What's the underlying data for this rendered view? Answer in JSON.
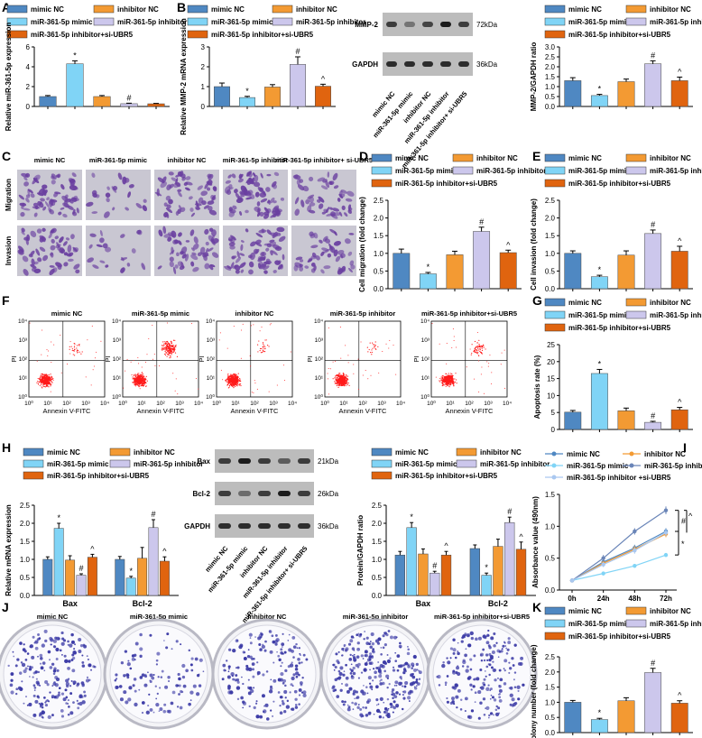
{
  "colors": {
    "mimic_nc": "#4f88c2",
    "mimic": "#80d4f6",
    "inhibitor_nc": "#f39a33",
    "inhibitor": "#ccc7ec",
    "inhibitor_siUBR5": "#e0640f",
    "stain_bg": "#c9c7d2",
    "stain_cell": "#6a3fa0",
    "blot_bg": "#bcbcbc",
    "blot_band": "#1c1c1c",
    "flow_dot": "#ff1a1a",
    "colony": "#3b3aa6"
  },
  "legend": {
    "mimic_nc": "mimic NC",
    "mimic": "miR-361-5p mimic",
    "inhibitor_nc": "inhibitor NC",
    "inhibitor": "miR-361-5p inhibitor",
    "inhibitor_siUBR5": "miR-361-5p inhibitor+si-UBR5"
  },
  "panel_labels": {
    "A": "A",
    "B": "B",
    "C": "C",
    "D": "D",
    "E": "E",
    "F": "F",
    "G": "G",
    "H": "H",
    "I": "I",
    "J": "J",
    "K": "K"
  },
  "images": {
    "C": {
      "groups": [
        "mimic NC",
        "miR-361-5p mimic",
        "inhibitor NC",
        "miR-361-5p inhibitor",
        "miR-361-5p inhibitor+ si-UBR5"
      ],
      "rows": [
        "Migration",
        "Invasion"
      ],
      "densities": [
        [
          70,
          22,
          60,
          75,
          50
        ],
        [
          60,
          20,
          55,
          70,
          48
        ]
      ]
    },
    "F": {
      "groups": [
        "mimic NC",
        "miR-361-5p mimic",
        "inhibitor NC",
        "miR-361-5p inhibitor",
        "miR-361-5p inhibitor+si-UBR5"
      ],
      "xlabel": "Annexin V-FITC",
      "ylabel": "PI",
      "ticks": [
        "10⁰",
        "10¹",
        "10²",
        "10³",
        "10⁴"
      ],
      "ur_density": [
        0.05,
        0.35,
        0.05,
        0.04,
        0.12
      ]
    },
    "J": {
      "groups": [
        "mimic NC",
        "miR-361-5p mimic",
        "inhibitor NC",
        "miR-361-5p inhibitor",
        "miR-361-5p inhibitor+si-UBR5"
      ],
      "colony_counts": [
        210,
        110,
        190,
        290,
        200
      ]
    },
    "blot_B": {
      "bands": [
        {
          "name": "MMP-2",
          "kda": "72kDa",
          "intensity": [
            0.8,
            0.45,
            0.75,
            1.0,
            0.8
          ]
        },
        {
          "name": "GAPDH",
          "kda": "36kDa",
          "intensity": [
            0.9,
            0.9,
            0.9,
            0.9,
            0.9
          ]
        }
      ],
      "lanes": [
        "mimic NC",
        "miR-361-5p mimic",
        "inhibitor NC",
        "miR-361-5p inhibitor",
        "miR-361-5p inhibitor+ si-UBR5"
      ]
    },
    "blot_H": {
      "bands": [
        {
          "name": "Bax",
          "kda": "21kDa",
          "intensity": [
            0.8,
            1.0,
            0.8,
            0.6,
            0.8
          ]
        },
        {
          "name": "Bcl-2",
          "kda": "26kDa",
          "intensity": [
            0.8,
            0.5,
            0.8,
            1.0,
            0.8
          ]
        },
        {
          "name": "GAPDH",
          "kda": "36kDa",
          "intensity": [
            0.9,
            0.9,
            0.9,
            0.9,
            0.9
          ]
        }
      ],
      "lanes": [
        "mimic NC",
        "miR-361-5p mimic",
        "inhibitor NC",
        "miR-361-5p inhibitor",
        "miR-361-5p inhibitor+ si-UBR5"
      ]
    }
  },
  "chart_data": [
    {
      "id": "A",
      "type": "bar",
      "categories": [
        "mimic NC",
        "miR-361-5p mimic",
        "inhibitor NC",
        "miR-361-5p inhibitor",
        "miR-361-5p inhibitor+si-UBR5"
      ],
      "values": [
        1.0,
        4.3,
        1.0,
        0.28,
        0.27
      ],
      "errors": [
        0.1,
        0.3,
        0.1,
        0.05,
        0.04
      ],
      "marks": [
        "",
        "*",
        "",
        "#",
        ""
      ],
      "ylabel": "Relative miR-361-5p expression",
      "ylim": [
        0,
        6
      ],
      "yticks": [
        0,
        2,
        4,
        6
      ]
    },
    {
      "id": "B1",
      "type": "bar",
      "categories": [
        "mimic NC",
        "miR-361-5p mimic",
        "inhibitor NC",
        "miR-361-5p inhibitor",
        "miR-361-5p inhibitor+si-UBR5"
      ],
      "values": [
        1.0,
        0.45,
        0.98,
        2.12,
        1.02
      ],
      "errors": [
        0.18,
        0.06,
        0.12,
        0.38,
        0.1
      ],
      "marks": [
        "",
        "*",
        "",
        "#",
        "^"
      ],
      "ylabel": "Relative MMP-2 mRNA expression",
      "ylim": [
        0,
        3
      ],
      "yticks": [
        0,
        1,
        2,
        3
      ]
    },
    {
      "id": "B2",
      "type": "bar",
      "categories": [
        "mimic NC",
        "miR-361-5p mimic",
        "inhibitor NC",
        "miR-361-5p inhibitor",
        "miR-361-5p inhibitor+si-UBR5"
      ],
      "values": [
        1.3,
        0.55,
        1.25,
        2.15,
        1.3
      ],
      "errors": [
        0.15,
        0.06,
        0.13,
        0.15,
        0.18
      ],
      "marks": [
        "",
        "*",
        "",
        "#",
        "^"
      ],
      "ylabel": "MMP-2/GAPDH ratio",
      "ylim": [
        0,
        3
      ],
      "yticks": [
        0.0,
        0.5,
        1.0,
        1.5,
        2.0,
        2.5,
        3.0
      ]
    },
    {
      "id": "D",
      "type": "bar",
      "categories": [
        "mimic NC",
        "miR-361-5p mimic",
        "inhibitor NC",
        "miR-361-5p inhibitor",
        "miR-361-5p inhibitor+si-UBR5"
      ],
      "values": [
        1.0,
        0.42,
        0.96,
        1.62,
        1.02
      ],
      "errors": [
        0.12,
        0.04,
        0.1,
        0.12,
        0.07
      ],
      "marks": [
        "",
        "*",
        "",
        "#",
        "^"
      ],
      "ylabel": "Cell migration (fold change)",
      "ylim": [
        0,
        2.5
      ],
      "yticks": [
        0.0,
        0.5,
        1.0,
        1.5,
        2.0,
        2.5
      ]
    },
    {
      "id": "E",
      "type": "bar",
      "categories": [
        "mimic NC",
        "miR-361-5p mimic",
        "inhibitor NC",
        "miR-361-5p inhibitor",
        "miR-361-5p inhibitor+si-UBR5"
      ],
      "values": [
        1.0,
        0.34,
        0.95,
        1.56,
        1.06
      ],
      "errors": [
        0.07,
        0.04,
        0.12,
        0.1,
        0.14
      ],
      "marks": [
        "",
        "*",
        "",
        "#",
        "^"
      ],
      "ylabel": "Cell invasion (fold change)",
      "ylim": [
        0,
        2.5
      ],
      "yticks": [
        0.0,
        0.5,
        1.0,
        1.5,
        2.0,
        2.5
      ]
    },
    {
      "id": "G",
      "type": "bar",
      "categories": [
        "mimic NC",
        "miR-361-5p mimic",
        "inhibitor NC",
        "miR-361-5p inhibitor",
        "miR-361-5p inhibitor+si-UBR5"
      ],
      "values": [
        5.1,
        16.5,
        5.5,
        2.1,
        5.8
      ],
      "errors": [
        0.5,
        1.2,
        0.8,
        0.3,
        0.7
      ],
      "marks": [
        "",
        "*",
        "",
        "#",
        "^"
      ],
      "ylabel": "Apoptosis rate (%)",
      "ylim": [
        0,
        25
      ],
      "yticks": [
        0,
        5,
        10,
        15,
        20,
        25
      ]
    },
    {
      "id": "H1",
      "type": "bar",
      "groups": [
        "Bax",
        "Bcl-2"
      ],
      "series": [
        {
          "name": "mimic NC",
          "values": [
            1.0,
            1.0
          ],
          "errors": [
            0.07,
            0.08
          ]
        },
        {
          "name": "miR-361-5p mimic",
          "values": [
            1.86,
            0.48
          ],
          "errors": [
            0.14,
            0.05
          ]
        },
        {
          "name": "inhibitor NC",
          "values": [
            0.98,
            1.03
          ],
          "errors": [
            0.12,
            0.3
          ]
        },
        {
          "name": "miR-361-5p inhibitor",
          "values": [
            0.56,
            1.88
          ],
          "errors": [
            0.04,
            0.22
          ]
        },
        {
          "name": "miR-361-5p inhibitor+si-UBR5",
          "values": [
            1.06,
            0.95
          ],
          "errors": [
            0.08,
            0.12
          ]
        }
      ],
      "marks": [
        [
          "",
          "*",
          "",
          "#",
          "^"
        ],
        [
          "",
          "*",
          "",
          "#",
          "^"
        ]
      ],
      "ylabel": "Relative mRNA expression",
      "ylim": [
        0,
        2.5
      ],
      "yticks": [
        0.0,
        0.5,
        1.0,
        1.5,
        2.0,
        2.5
      ]
    },
    {
      "id": "H2",
      "type": "bar",
      "groups": [
        "Bax",
        "Bcl-2"
      ],
      "series": [
        {
          "name": "mimic NC",
          "values": [
            1.12,
            1.3
          ],
          "errors": [
            0.1,
            0.1
          ]
        },
        {
          "name": "miR-361-5p mimic",
          "values": [
            1.88,
            0.56
          ],
          "errors": [
            0.14,
            0.06
          ]
        },
        {
          "name": "inhibitor NC",
          "values": [
            1.15,
            1.36
          ],
          "errors": [
            0.14,
            0.2
          ]
        },
        {
          "name": "miR-361-5p inhibitor",
          "values": [
            0.62,
            2.02
          ],
          "errors": [
            0.05,
            0.15
          ]
        },
        {
          "name": "miR-361-5p inhibitor+si-UBR5",
          "values": [
            1.12,
            1.28
          ],
          "errors": [
            0.1,
            0.2
          ]
        }
      ],
      "marks": [
        [
          "",
          "*",
          "",
          "#",
          "^"
        ],
        [
          "",
          "*",
          "",
          "#",
          "^"
        ]
      ],
      "ylabel": "Protein/GAPDH ratio",
      "ylim": [
        0,
        2.5
      ],
      "yticks": [
        0.0,
        0.5,
        1.0,
        1.5,
        2.0,
        2.5
      ]
    },
    {
      "id": "I",
      "type": "line",
      "x": [
        "0h",
        "24h",
        "48h",
        "72h"
      ],
      "series": [
        {
          "name": "mimic NC",
          "values": [
            0.15,
            0.44,
            0.66,
            0.92
          ],
          "errors": [
            0.01,
            0.05,
            0.05,
            0.05
          ],
          "marker": "circle"
        },
        {
          "name": "inhibitor NC",
          "values": [
            0.15,
            0.42,
            0.64,
            0.88
          ],
          "errors": [
            0.01,
            0.05,
            0.05,
            0.05
          ],
          "marker": "triangle"
        },
        {
          "name": "miR-361-5p mimic",
          "values": [
            0.15,
            0.26,
            0.38,
            0.55
          ],
          "errors": [
            0.01,
            0.03,
            0.03,
            0.03
          ],
          "marker": "square"
        },
        {
          "name": "miR-361-5p inhibitor",
          "values": [
            0.15,
            0.5,
            0.92,
            1.25
          ],
          "errors": [
            0.01,
            0.05,
            0.05,
            0.06
          ],
          "marker": "triangle-down"
        },
        {
          "name": "miR-361-5p inhibitor +si-UBR5",
          "values": [
            0.15,
            0.4,
            0.62,
            0.9
          ],
          "errors": [
            0.01,
            0.04,
            0.05,
            0.05
          ],
          "marker": "x"
        }
      ],
      "ylabel": "Absorbance value (490nm)",
      "ylim": [
        0,
        1.5
      ],
      "yticks": [
        0.0,
        0.5,
        1.0,
        1.5
      ],
      "annotations": [
        "^",
        "#",
        "*"
      ]
    },
    {
      "id": "K",
      "type": "bar",
      "categories": [
        "mimic NC",
        "miR-361-5p mimic",
        "inhibitor NC",
        "miR-361-5p inhibitor",
        "miR-361-5p inhibitor+si-UBR5"
      ],
      "values": [
        1.0,
        0.43,
        1.05,
        1.98,
        0.97
      ],
      "errors": [
        0.06,
        0.04,
        0.1,
        0.14,
        0.08
      ],
      "marks": [
        "",
        "*",
        "",
        "#",
        "^"
      ],
      "ylabel": "Colony number (fold change)",
      "ylim": [
        0,
        2.5
      ],
      "yticks": [
        0.0,
        0.5,
        1.0,
        1.5,
        2.0,
        2.5
      ]
    }
  ]
}
